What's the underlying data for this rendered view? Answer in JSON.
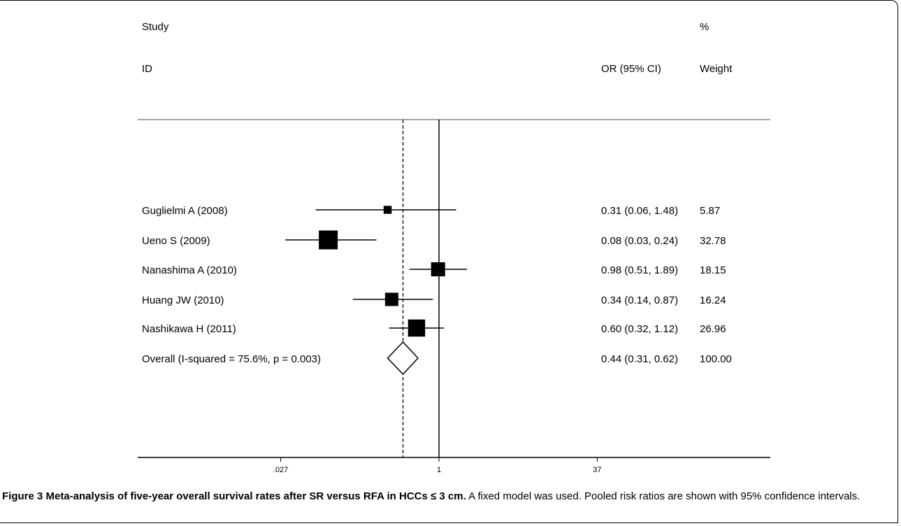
{
  "chart_data": {
    "type": "forest",
    "header": {
      "study_line1": "Study",
      "study_line2": "ID",
      "effect_label": "OR (95% CI)",
      "weight_line1": "%",
      "weight_line2": "Weight"
    },
    "studies": [
      {
        "name": "Guglielmi A (2008)",
        "or": 0.31,
        "lo": 0.06,
        "hi": 1.48,
        "ci_text": "0.31 (0.06, 1.48)",
        "weight": 5.87,
        "weight_text": "5.87"
      },
      {
        "name": "Ueno S (2009)",
        "or": 0.08,
        "lo": 0.03,
        "hi": 0.24,
        "ci_text": "0.08 (0.03, 0.24)",
        "weight": 32.78,
        "weight_text": "32.78"
      },
      {
        "name": "Nanashima A (2010)",
        "or": 0.98,
        "lo": 0.51,
        "hi": 1.89,
        "ci_text": "0.98 (0.51, 1.89)",
        "weight": 18.15,
        "weight_text": "18.15"
      },
      {
        "name": "Huang JW (2010)",
        "or": 0.34,
        "lo": 0.14,
        "hi": 0.87,
        "ci_text": "0.34 (0.14, 0.87)",
        "weight": 16.24,
        "weight_text": "16.24"
      },
      {
        "name": "Nashikawa H (2011)",
        "or": 0.6,
        "lo": 0.32,
        "hi": 1.12,
        "ci_text": "0.60 (0.32, 1.12)",
        "weight": 26.96,
        "weight_text": "26.96"
      }
    ],
    "overall": {
      "name": "Overall  (I-squared = 75.6%, p = 0.003)",
      "or": 0.44,
      "lo": 0.31,
      "hi": 0.62,
      "ci_text": "0.44 (0.31, 0.62)",
      "weight_text": "100.00"
    },
    "x_scale": "log",
    "x_ticks": [
      {
        "value": 0.027,
        "label": ".027"
      },
      {
        "value": 1,
        "label": "1"
      },
      {
        "value": 37,
        "label": "37"
      }
    ],
    "null_value": 1
  },
  "caption": {
    "bold": "Figure 3 Meta-analysis of five-year overall survival rates after SR versus RFA in HCCs ≤ 3 cm.",
    "rest": " A fixed model was used. Pooled risk ratios are shown with 95% confidence intervals."
  }
}
